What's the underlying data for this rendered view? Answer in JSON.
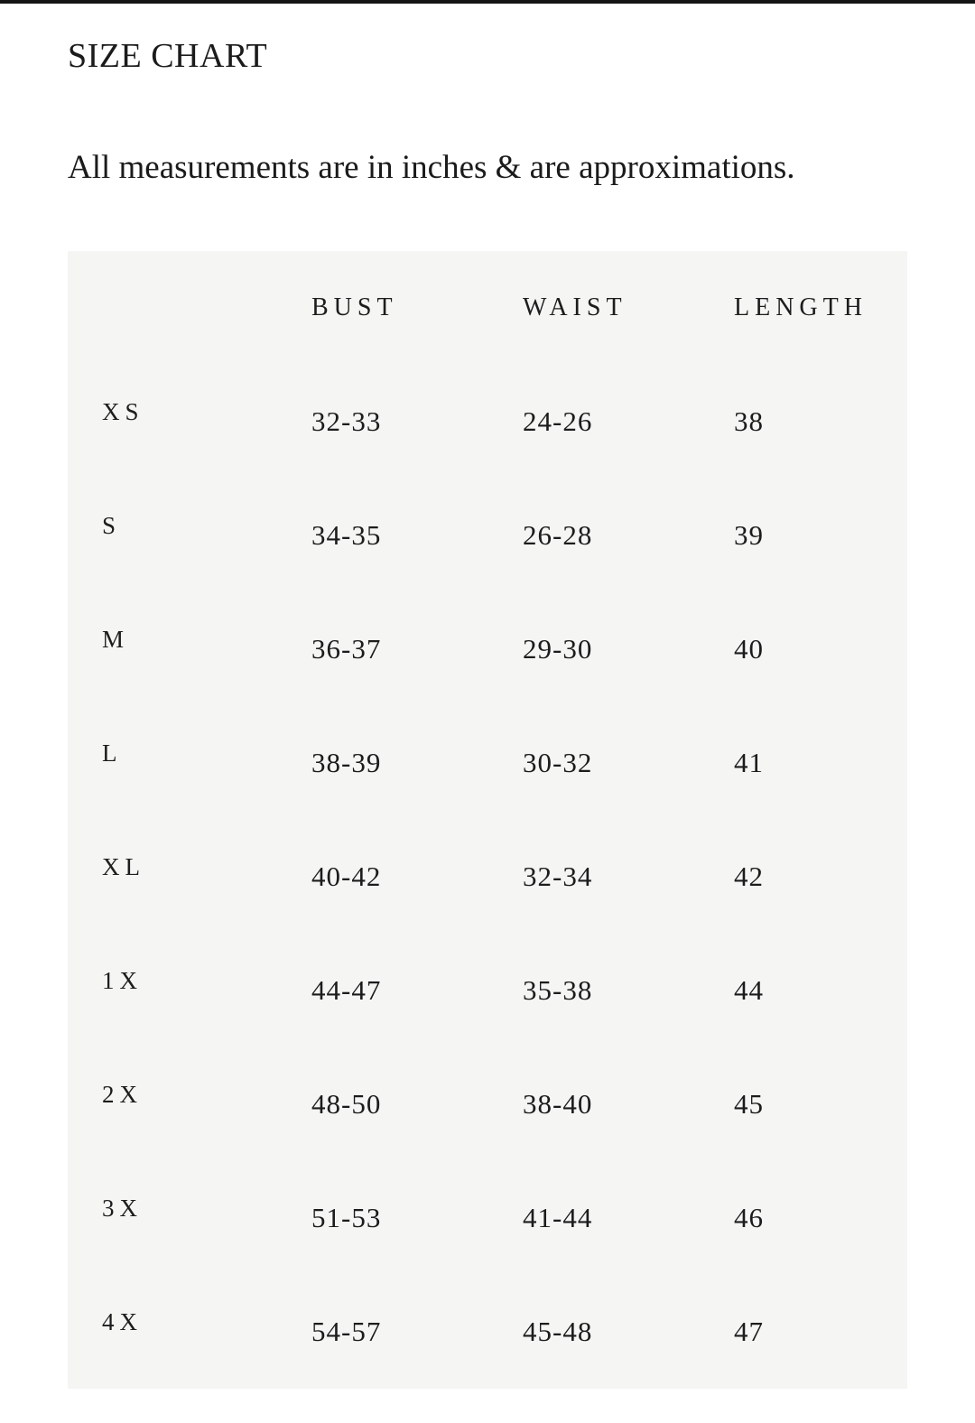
{
  "page": {
    "title": "SIZE CHART",
    "subtitle": "All measurements are in inches & are approximations."
  },
  "table": {
    "columns": [
      "BUST",
      "WAIST",
      "LENGTH"
    ],
    "rows": [
      {
        "size": "XS",
        "bust": "32-33",
        "waist": "24-26",
        "length": "38"
      },
      {
        "size": "S",
        "bust": "34-35",
        "waist": "26-28",
        "length": "39"
      },
      {
        "size": "M",
        "bust": "36-37",
        "waist": "29-30",
        "length": "40"
      },
      {
        "size": "L",
        "bust": "38-39",
        "waist": "30-32",
        "length": "41"
      },
      {
        "size": "XL",
        "bust": "40-42",
        "waist": "32-34",
        "length": "42"
      },
      {
        "size": "1X",
        "bust": "44-47",
        "waist": "35-38",
        "length": "44"
      },
      {
        "size": "2X",
        "bust": "48-50",
        "waist": "38-40",
        "length": "45"
      },
      {
        "size": "3X",
        "bust": "51-53",
        "waist": "41-44",
        "length": "46"
      },
      {
        "size": "4X",
        "bust": "54-57",
        "waist": "45-48",
        "length": "47"
      }
    ]
  },
  "colors": {
    "top_bar": "#141414",
    "panel_background": "#f5f5f4",
    "text": "#1c1c1c",
    "page_background": "#ffffff"
  }
}
